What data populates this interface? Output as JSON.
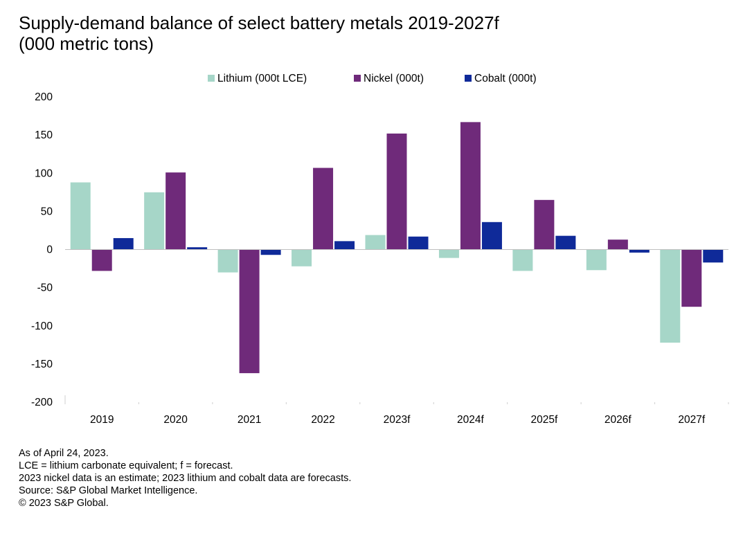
{
  "chart_data": {
    "type": "bar",
    "title": "Supply-demand balance of select battery metals 2019-2027f",
    "subtitle": "(000 metric tons)",
    "categories": [
      "2019",
      "2020",
      "2021",
      "2022",
      "2023f",
      "2024f",
      "2025f",
      "2026f",
      "2027f"
    ],
    "series": [
      {
        "name": "Lithium (000t LCE)",
        "color": "#a6d6c8",
        "values": [
          88,
          75,
          -30,
          -22,
          19,
          -11,
          -28,
          -27,
          -122
        ]
      },
      {
        "name": "Nickel (000t)",
        "color": "#6f2a7a",
        "values": [
          -28,
          101,
          -162,
          107,
          152,
          167,
          65,
          13,
          -75
        ]
      },
      {
        "name": "Cobalt (000t)",
        "color": "#0f2a99",
        "values": [
          15,
          3,
          -7,
          11,
          17,
          36,
          18,
          -4,
          -17
        ]
      }
    ],
    "ylim": [
      -200,
      200
    ],
    "yticks": [
      200,
      150,
      100,
      50,
      0,
      -50,
      -100,
      -150,
      -200
    ],
    "legend_position": "top-center",
    "grid": false
  },
  "notes": [
    "As of April 24, 2023.",
    "LCE = lithium carbonate equivalent; f = forecast.",
    "2023 nickel data is an estimate; 2023 lithium and cobalt data are forecasts.",
    "Source: S&P Global Market Intelligence.",
    "© 2023 S&P Global."
  ]
}
